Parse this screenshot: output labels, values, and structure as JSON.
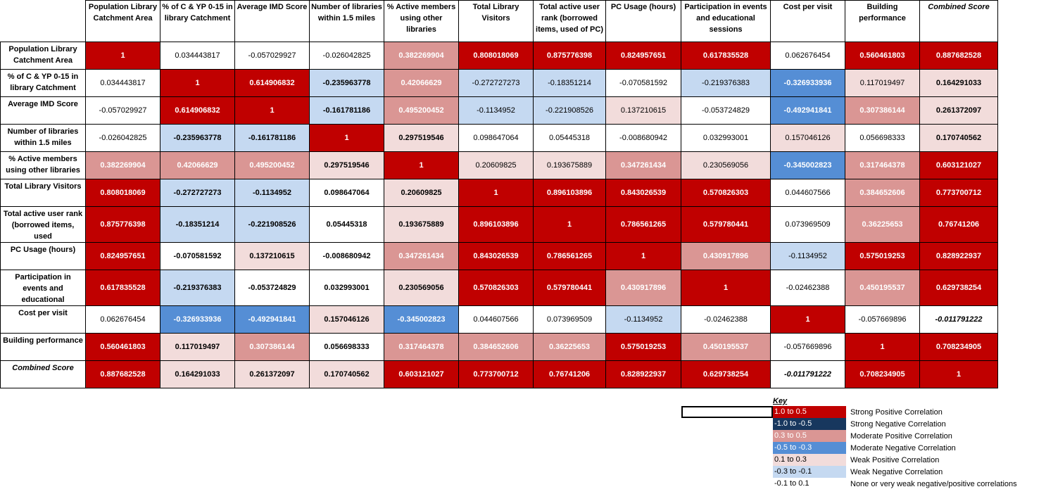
{
  "headers": [
    "Population Library Catchment Area",
    "% of C & YP 0-15 in library Catchment",
    "Average IMD Score",
    "Number of libraries within 1.5 miles",
    "% Active members using other libraries",
    "Total Library Visitors",
    "Total active user rank (borrowed items, used of PC)",
    "PC Usage (hours)",
    "Participation in events and educational sessions",
    "Cost per visit",
    "Building performance",
    "Combined Score"
  ],
  "rows": [
    {
      "label": "Population Library Catchment Area",
      "cells": [
        "1",
        "0.034443817",
        "-0.057029927",
        "-0.026042825",
        "0.382269904",
        "0.808018069",
        "0.875776398",
        "0.824957651",
        "0.617835528",
        "0.062676454",
        "0.560461803",
        "0.887682528"
      ],
      "classes": [
        "c-sp",
        "c-n",
        "c-n",
        "c-n",
        "c-mp",
        "c-sp",
        "c-sp",
        "c-sp",
        "c-sp",
        "c-n",
        "c-sp",
        "c-sp"
      ]
    },
    {
      "label": "% of C & YP 0-15 in library Catchment",
      "cells": [
        "0.034443817",
        "1",
        "0.614906832",
        "-0.235963778",
        "0.42066629",
        "-0.272727273",
        "-0.18351214",
        "-0.070581592",
        "-0.219376383",
        "-0.326933936",
        "0.117019497",
        "0.164291033"
      ],
      "classes": [
        "c-n",
        "c-sp",
        "c-sp",
        "c-wn",
        "c-mp",
        "c-wn",
        "c-wn",
        "c-n",
        "c-wn",
        "c-mn",
        "c-wp",
        "c-wp"
      ]
    },
    {
      "label": "Average IMD Score",
      "cells": [
        "-0.057029927",
        "0.614906832",
        "1",
        "-0.161781186",
        "0.495200452",
        "-0.1134952",
        "-0.221908526",
        "0.137210615",
        "-0.053724829",
        "-0.492941841",
        "0.307386144",
        "0.261372097"
      ],
      "classes": [
        "c-n",
        "c-sp",
        "c-sp",
        "c-wn",
        "c-mp",
        "c-wn",
        "c-wn",
        "c-wp",
        "c-n",
        "c-mn",
        "c-mp",
        "c-wp"
      ]
    },
    {
      "label": "Number of libraries within 1.5 miles",
      "cells": [
        "-0.026042825",
        "-0.235963778",
        "-0.161781186",
        "1",
        "0.297519546",
        "0.098647064",
        "0.05445318",
        "-0.008680942",
        "0.032993001",
        "0.157046126",
        "0.056698333",
        "0.170740562"
      ],
      "classes": [
        "c-n",
        "c-wn",
        "c-wn",
        "c-sp",
        "c-wp",
        "c-n",
        "c-n",
        "c-n",
        "c-n",
        "c-wp",
        "c-n",
        "c-wp"
      ]
    },
    {
      "label": "% Active members using other libraries",
      "cells": [
        "0.382269904",
        "0.42066629",
        "0.495200452",
        "0.297519546",
        "1",
        "0.20609825",
        "0.193675889",
        "0.347261434",
        "0.230569056",
        "-0.345002823",
        "0.317464378",
        "0.603121027"
      ],
      "classes": [
        "c-mp",
        "c-mp",
        "c-mp",
        "c-wp",
        "c-sp",
        "c-wp",
        "c-wp",
        "c-mp",
        "c-wp",
        "c-mn",
        "c-mp",
        "c-sp"
      ]
    },
    {
      "label": "Total Library Visitors",
      "cells": [
        "0.808018069",
        "-0.272727273",
        "-0.1134952",
        "0.098647064",
        "0.20609825",
        "1",
        "0.896103896",
        "0.843026539",
        "0.570826303",
        "0.044607566",
        "0.384652606",
        "0.773700712"
      ],
      "classes": [
        "c-sp",
        "c-wn",
        "c-wn",
        "c-n",
        "c-wp",
        "c-sp",
        "c-sp",
        "c-sp",
        "c-sp",
        "c-n",
        "c-mp",
        "c-sp"
      ]
    },
    {
      "label": "Total active user rank (borrowed items, used",
      "cells": [
        "0.875776398",
        "-0.18351214",
        "-0.221908526",
        "0.05445318",
        "0.193675889",
        "0.896103896",
        "1",
        "0.786561265",
        "0.579780441",
        "0.073969509",
        "0.36225653",
        "0.76741206"
      ],
      "classes": [
        "c-sp",
        "c-wn",
        "c-wn",
        "c-n",
        "c-wp",
        "c-sp",
        "c-sp",
        "c-sp",
        "c-sp",
        "c-n",
        "c-mp",
        "c-sp"
      ]
    },
    {
      "label": "PC Usage (hours)",
      "cells": [
        "0.824957651",
        "-0.070581592",
        "0.137210615",
        "-0.008680942",
        "0.347261434",
        "0.843026539",
        "0.786561265",
        "1",
        "0.430917896",
        "-0.1134952",
        "0.575019253",
        "0.828922937"
      ],
      "classes": [
        "c-sp",
        "c-n",
        "c-wp",
        "c-n",
        "c-mp",
        "c-sp",
        "c-sp",
        "c-sp",
        "c-mp",
        "c-wn",
        "c-sp",
        "c-sp"
      ]
    },
    {
      "label": "Participation in events and educational",
      "cells": [
        "0.617835528",
        "-0.219376383",
        "-0.053724829",
        "0.032993001",
        "0.230569056",
        "0.570826303",
        "0.579780441",
        "0.430917896",
        "1",
        "-0.02462388",
        "0.450195537",
        "0.629738254"
      ],
      "classes": [
        "c-sp",
        "c-wn",
        "c-n",
        "c-n",
        "c-wp",
        "c-sp",
        "c-sp",
        "c-mp",
        "c-sp",
        "c-n",
        "c-mp",
        "c-sp"
      ]
    },
    {
      "label": "Cost per visit",
      "cells": [
        "0.062676454",
        "-0.326933936",
        "-0.492941841",
        "0.157046126",
        "-0.345002823",
        "0.044607566",
        "0.073969509",
        "-0.1134952",
        "-0.02462388",
        "1",
        "-0.057669896",
        "-0.011791222"
      ],
      "classes": [
        "c-n",
        "c-mn",
        "c-mn",
        "c-wp",
        "c-mn",
        "c-n",
        "c-n",
        "c-wn",
        "c-n",
        "c-sp",
        "c-n",
        "c-n"
      ]
    },
    {
      "label": "Building performance",
      "cells": [
        "0.560461803",
        "0.117019497",
        "0.307386144",
        "0.056698333",
        "0.317464378",
        "0.384652606",
        "0.36225653",
        "0.575019253",
        "0.450195537",
        "-0.057669896",
        "1",
        "0.708234905"
      ],
      "classes": [
        "c-sp",
        "c-wp",
        "c-mp",
        "c-n",
        "c-mp",
        "c-mp",
        "c-mp",
        "c-sp",
        "c-mp",
        "c-n",
        "c-sp",
        "c-sp"
      ]
    },
    {
      "label": "Combined Score",
      "cells": [
        "0.887682528",
        "0.164291033",
        "0.261372097",
        "0.170740562",
        "0.603121027",
        "0.773700712",
        "0.76741206",
        "0.828922937",
        "0.629738254",
        "-0.011791222",
        "0.708234905",
        "1"
      ],
      "classes": [
        "c-sp",
        "c-wp",
        "c-wp",
        "c-wp",
        "c-sp",
        "c-sp",
        "c-sp",
        "c-sp",
        "c-sp",
        "c-n",
        "c-sp",
        "c-sp"
      ]
    }
  ],
  "key": {
    "title": "Key",
    "items": [
      {
        "range": "1.0 to 0.5",
        "desc": "Strong Positive Correlation",
        "cls": "c-sp"
      },
      {
        "range": "-1.0 to -0.5",
        "desc": "Strong Negative Correlation",
        "cls": "c-sn"
      },
      {
        "range": "0.3 to 0.5",
        "desc": "Moderate Positive Correlation",
        "cls": "c-mp"
      },
      {
        "range": "-0.5 to -0.3",
        "desc": "Moderate Negative Correlation",
        "cls": "c-mn"
      },
      {
        "range": "0.1 to 0.3",
        "desc": "Weak Positive Correlation",
        "cls": "c-wp"
      },
      {
        "range": "-0.3 to -0.1",
        "desc": "Weak Negative Correlation",
        "cls": "c-wn"
      },
      {
        "range": "-0.1 to 0.1",
        "desc": "None or very weak negative/positive correlations",
        "cls": "c-n"
      }
    ]
  },
  "colors": {
    "strong_positive": "#c00000",
    "moderate_positive": "#da9694",
    "weak_positive": "#f2dcdb",
    "none": "#ffffff",
    "weak_negative": "#c5d9f1",
    "moderate_negative": "#558ed5",
    "strong_negative": "#17375e"
  }
}
